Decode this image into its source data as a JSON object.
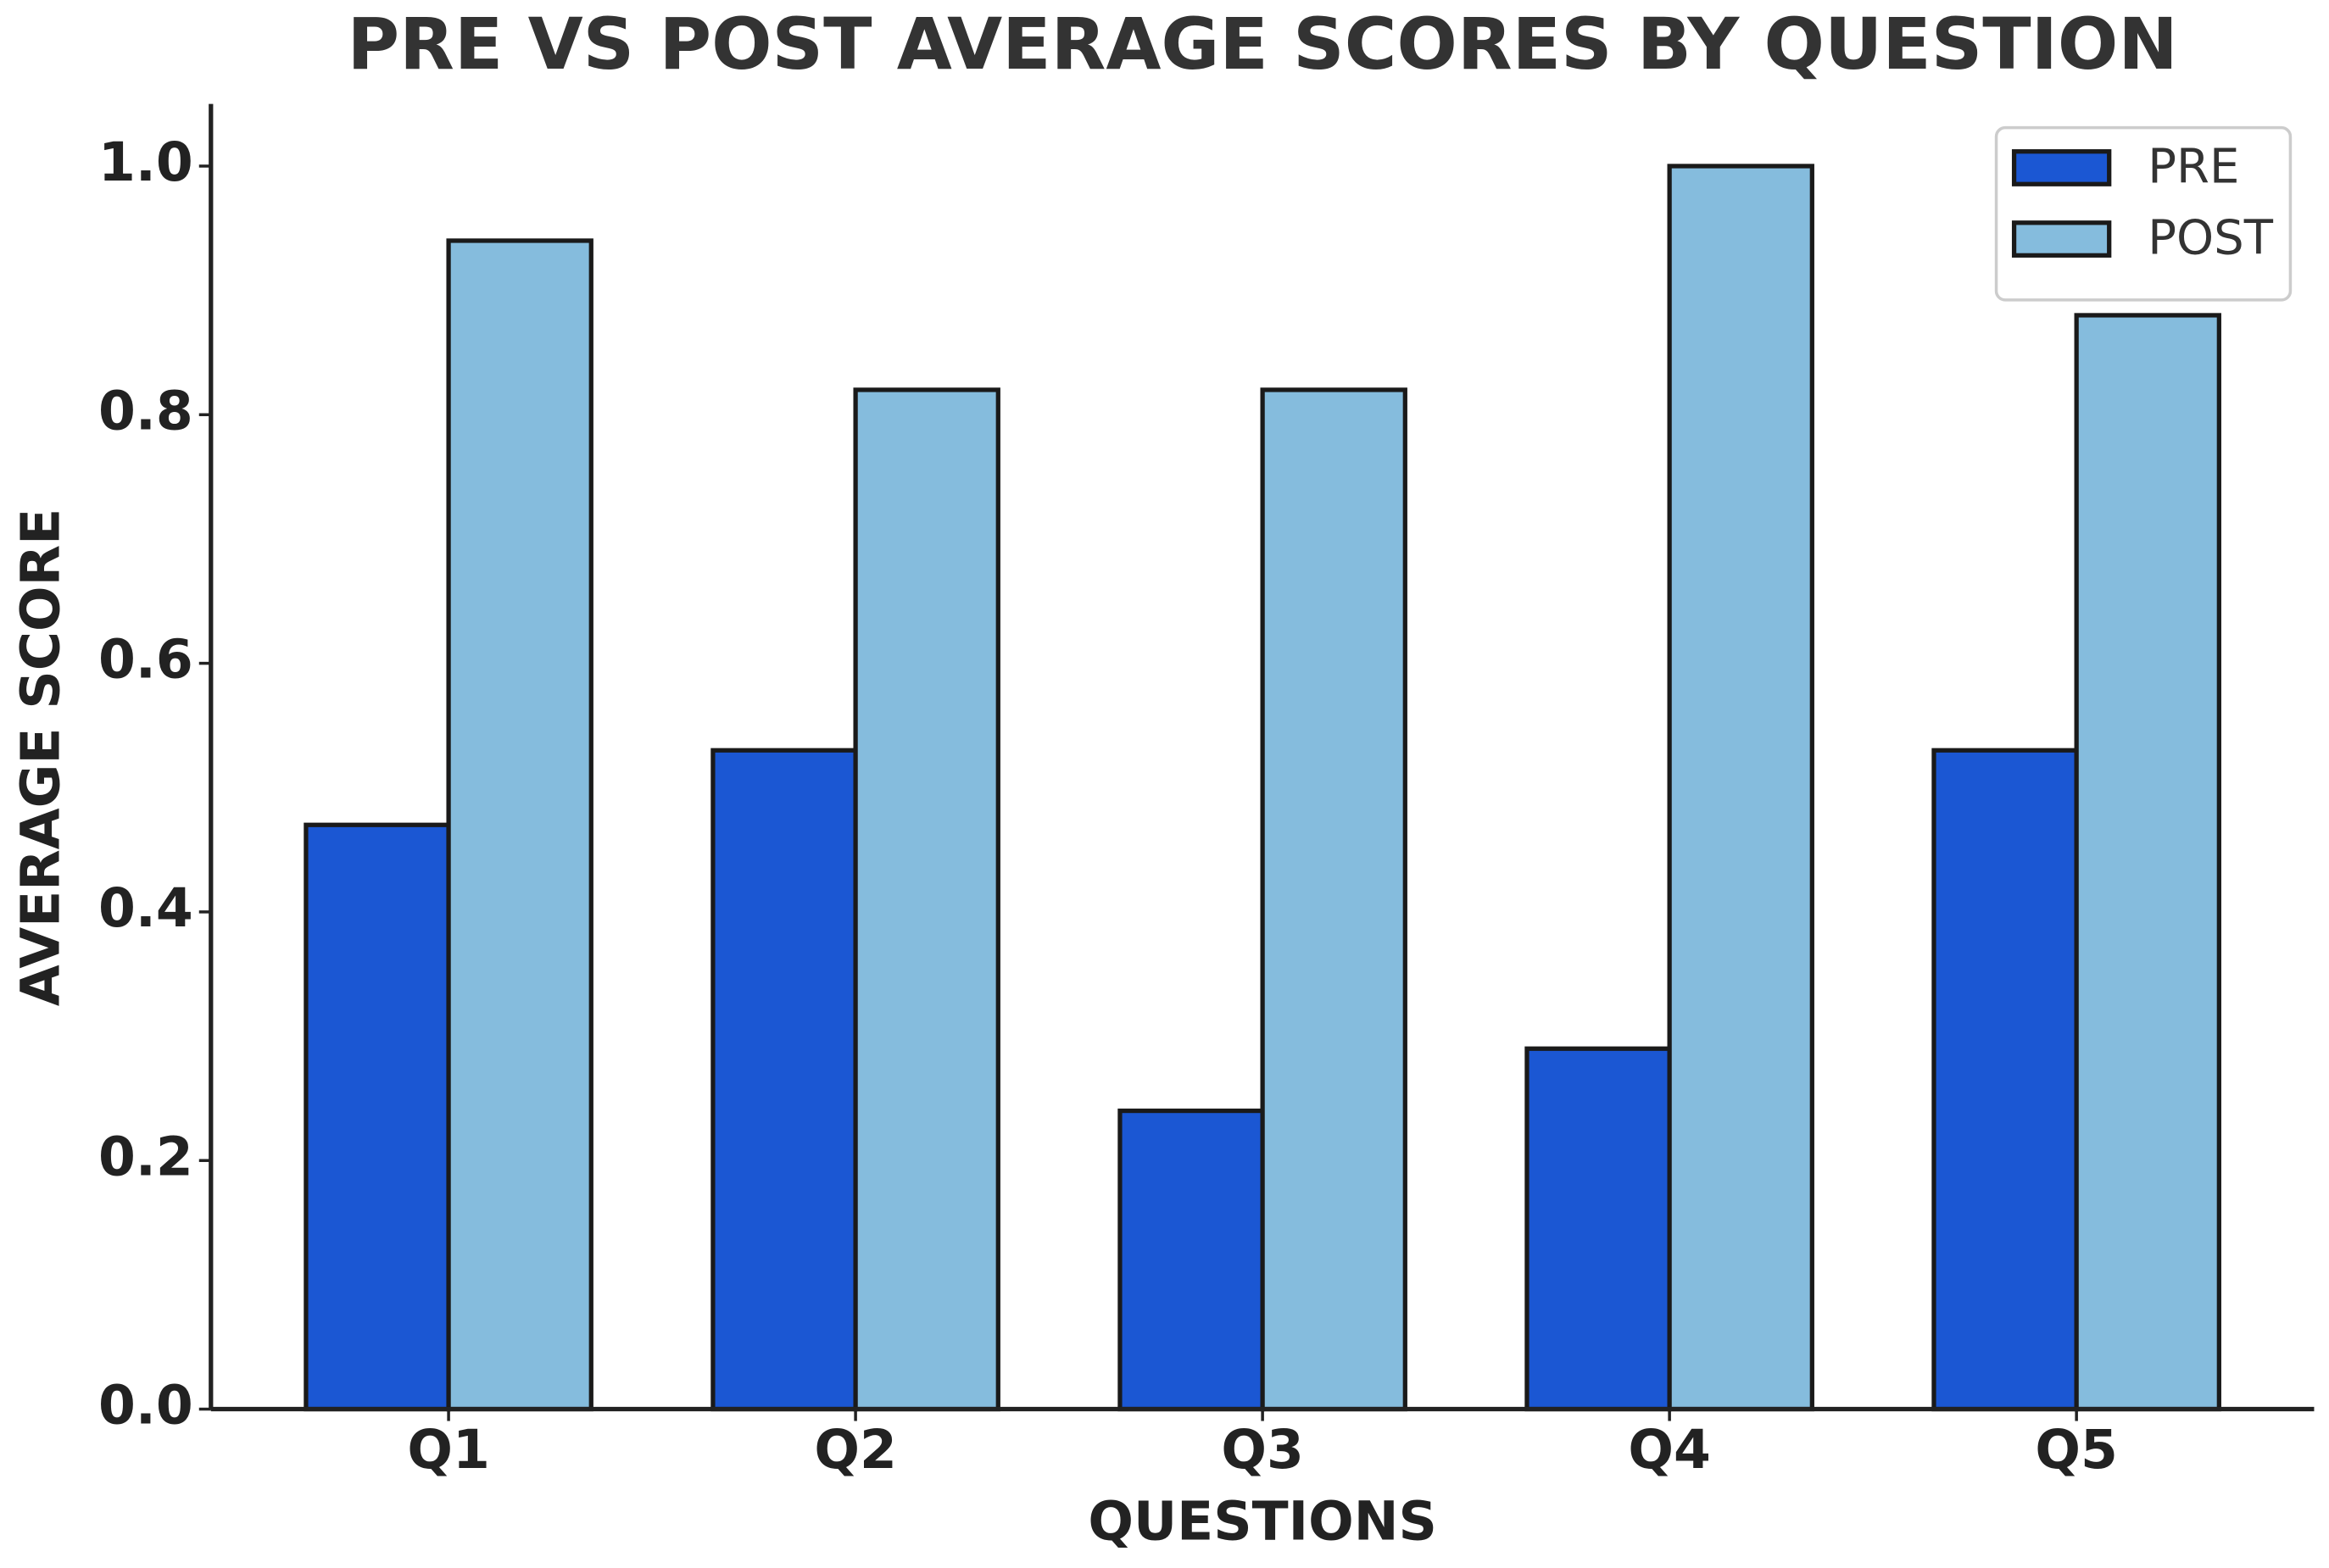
{
  "chart_data": {
    "type": "bar",
    "title": "PRE VS POST AVERAGE SCORES BY QUESTION",
    "x_label": "QUESTIONS",
    "y_label": "AVERAGE SCORE",
    "categories": [
      "Q1",
      "Q2",
      "Q3",
      "Q4",
      "Q5"
    ],
    "series": [
      {
        "name": "PRE",
        "color": "#1b57d3",
        "values": [
          0.47,
          0.53,
          0.24,
          0.29,
          0.53
        ]
      },
      {
        "name": "POST",
        "color": "#85bcdd",
        "values": [
          0.94,
          0.82,
          0.82,
          1.0,
          0.88
        ]
      }
    ],
    "ylim": [
      0,
      1.05
    ],
    "yticks": [
      {
        "value": 0,
        "label": "0.0"
      },
      0.2,
      0.4,
      0.6,
      0.8,
      {
        "value": 1,
        "label": "1.0"
      }
    ],
    "legend": "upper right"
  }
}
